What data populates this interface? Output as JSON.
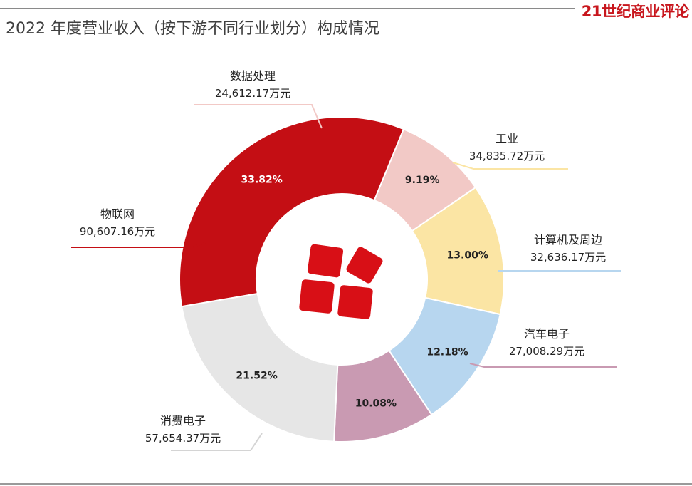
{
  "header": {
    "brand": "21世纪商业评论",
    "title": "2022 年度营业收入（按下游不同行业划分）构成情况"
  },
  "chart_data": {
    "type": "pie",
    "title": "2022 年度营业收入（按下游不同行业划分）构成情况",
    "unit": "万元",
    "slices": [
      {
        "name": "数据处理",
        "value_label": "24,612.17万元",
        "value": 24612.17,
        "percent": 9.19,
        "percent_label": "9.19%",
        "color": "#f2c9c6"
      },
      {
        "name": "工业",
        "value_label": "34,835.72万元",
        "value": 34835.72,
        "percent": 13.0,
        "percent_label": "13.00%",
        "color": "#fbe5a4"
      },
      {
        "name": "计算机及周边",
        "value_label": "32,636.17万元",
        "value": 32636.17,
        "percent": 12.18,
        "percent_label": "12.18%",
        "color": "#b7d6ef"
      },
      {
        "name": "汽车电子",
        "value_label": "27,008.29万元",
        "value": 27008.29,
        "percent": 10.08,
        "percent_label": "10.08%",
        "color": "#c99ab2"
      },
      {
        "name": "消费电子",
        "value_label": "57,654.37万元",
        "value": 57654.37,
        "percent": 21.52,
        "percent_label": "21.52%",
        "color": "#e6e6e6"
      },
      {
        "name": "物联网",
        "value_label": "90,607.16万元",
        "value": 90607.16,
        "percent": 33.82,
        "percent_label": "33.82%",
        "color": "#c40e14"
      }
    ],
    "center_icon": "red-tiles-logo-icon",
    "legend": "leader-lines"
  }
}
